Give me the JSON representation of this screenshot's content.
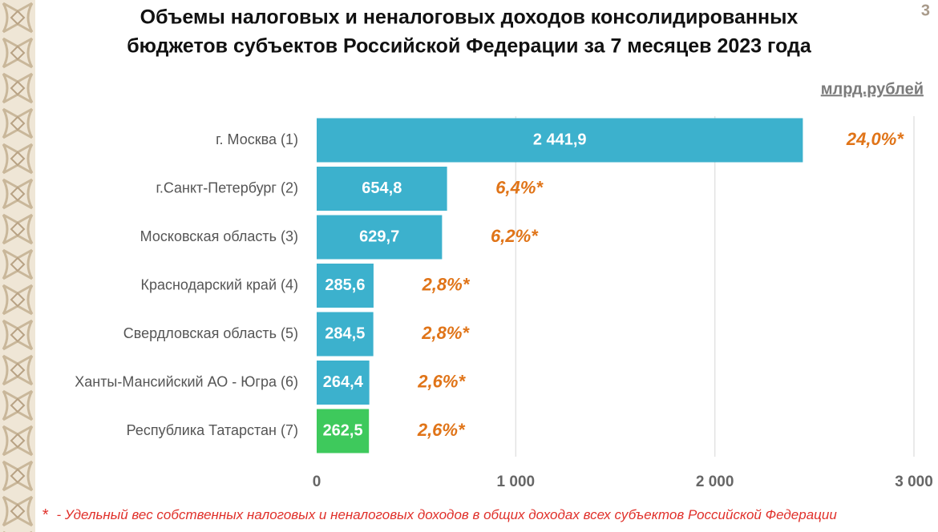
{
  "chart_data": {
    "type": "bar",
    "orientation": "horizontal",
    "title": [
      "Объемы налоговых и неналоговых доходов консолидированных",
      "бюджетов субъектов Российской Федерации за 7 месяцев 2023 года"
    ],
    "page_number": "3",
    "unit": "млрд.рублей",
    "categories": [
      "г. Москва (1)",
      "г.Санкт-Петербург (2)",
      "Московская область (3)",
      "Краснодарский край (4)",
      "Свердловская область (5)",
      "Ханты-Мансийский АО - Югра (6)",
      "Республика Татарстан (7)"
    ],
    "values": [
      2441.9,
      654.8,
      629.7,
      285.6,
      284.5,
      264.4,
      262.5
    ],
    "value_labels": [
      "2 441,9",
      "654,8",
      "629,7",
      "285,6",
      "284,5",
      "264,4",
      "262,5"
    ],
    "share_labels": [
      "24,0%*",
      "6,4%*",
      "6,2%*",
      "2,8%*",
      "2,8%*",
      "2,6%*",
      "2,6%*"
    ],
    "colors": [
      "#3cb1cd",
      "#3cb1cd",
      "#3cb1cd",
      "#3cb1cd",
      "#3cb1cd",
      "#3cb1cd",
      "#3ec95c"
    ],
    "xlim": [
      0,
      3000
    ],
    "xticks": [
      0,
      {
        "value": 1000,
        "label": "1 000"
      },
      {
        "value": 2000,
        "label": "2 000"
      },
      {
        "value": 3000,
        "label": "3 000"
      }
    ],
    "grid": true,
    "footnote_marker": "*",
    "footnote": " - Удельный вес собственных налоговых и неналоговых доходов в общих доходах всех субъектов Российской Федерации"
  }
}
